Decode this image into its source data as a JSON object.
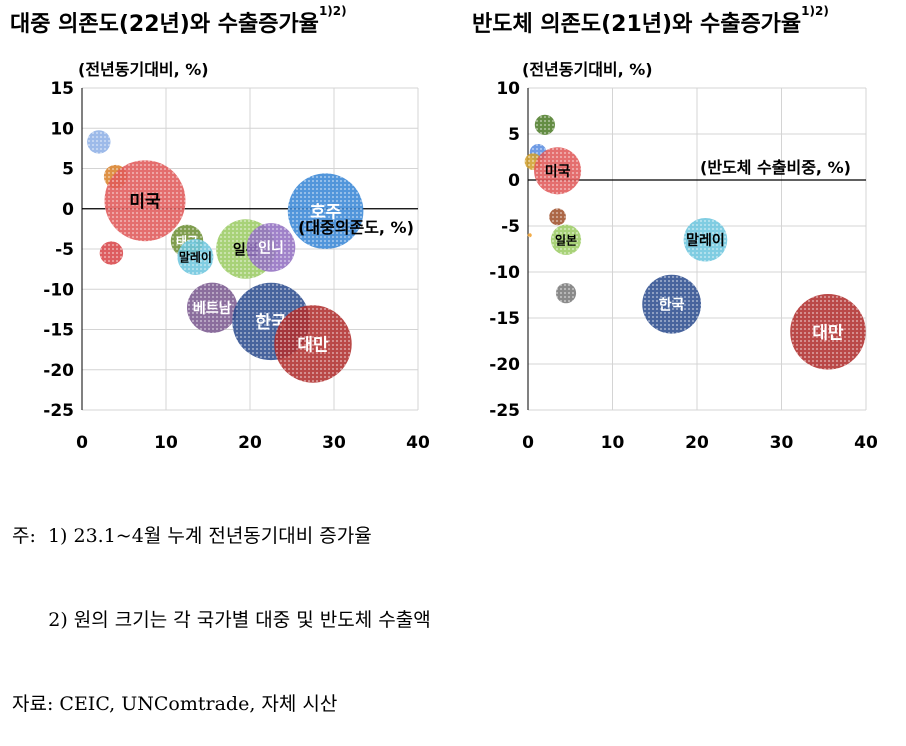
{
  "titles": {
    "left": {
      "text": "대중 의존도(22년)와 수출증가율",
      "sup": "1)2)"
    },
    "right": {
      "text": "반도체 의존도(21년)와 수출증가율",
      "sup": "1)2)"
    }
  },
  "notes": [
    "주:  1) 23.1~4월 누계 전년동기대비 증가율",
    "      2) 원의 크기는 각 국가별 대중 및 반도체 수출액",
    "자료: CEIC, UNComtrade, 자체 시산"
  ],
  "chart_data": [
    {
      "type": "bubble",
      "ylabel": "(전년동기대비, %)",
      "xlabel": "(대중의존도, %)",
      "xlim": [
        0,
        40
      ],
      "ylim": [
        -25,
        15
      ],
      "xticks": [
        0,
        10,
        20,
        30,
        40
      ],
      "yticks": [
        15,
        10,
        5,
        0,
        -5,
        -10,
        -15,
        -20,
        -25
      ],
      "grid": true,
      "points": [
        {
          "label": "",
          "x": 2,
          "y": 8.3,
          "size": 1.3,
          "color": "#8fb1e6"
        },
        {
          "label": "",
          "x": 4,
          "y": 4,
          "size": 1.3,
          "color": "#d9822b"
        },
        {
          "label": "",
          "x": 3.5,
          "y": -5.5,
          "size": 1.3,
          "color": "#d8474a"
        },
        {
          "label": "미국",
          "x": 7.5,
          "y": 1,
          "size": 4.5,
          "color": "#e05a5a"
        },
        {
          "label": "태국",
          "x": 12.5,
          "y": -4,
          "size": 1.8,
          "color": "#6d8f35"
        },
        {
          "label": "말레이",
          "x": 13.5,
          "y": -6,
          "size": 2.0,
          "color": "#6ec6de"
        },
        {
          "label": "베트남",
          "x": 15.5,
          "y": -12.3,
          "size": 2.8,
          "color": "#7b5a8f"
        },
        {
          "label": "일본",
          "x": 19.5,
          "y": -5,
          "size": 3.3,
          "color": "#9ccc65"
        },
        {
          "label": "인니",
          "x": 22.5,
          "y": -4.8,
          "size": 2.7,
          "color": "#9371c2"
        },
        {
          "label": "한국",
          "x": 22.5,
          "y": -14,
          "size": 4.3,
          "color": "#2f4f8f"
        },
        {
          "label": "대만",
          "x": 27.5,
          "y": -16.8,
          "size": 4.3,
          "color": "#b0302f"
        },
        {
          "label": "호주",
          "x": 29,
          "y": -0.3,
          "size": 4.2,
          "color": "#3a87d6"
        }
      ]
    },
    {
      "type": "bubble",
      "ylabel": "(전년동기대비, %)",
      "xlabel": "(반도체 수출비중, %)",
      "xlim": [
        0,
        40
      ],
      "ylim": [
        -25,
        10
      ],
      "xticks": [
        0,
        10,
        20,
        30,
        40
      ],
      "yticks": [
        10,
        5,
        0,
        -5,
        -10,
        -15,
        -20,
        -25
      ],
      "grid": true,
      "points": [
        {
          "label": "",
          "x": 2,
          "y": 6,
          "size": 1.2,
          "color": "#4e7d2a"
        },
        {
          "label": "",
          "x": 1.2,
          "y": 3,
          "size": 1.0,
          "color": "#5b8de0"
        },
        {
          "label": "",
          "x": 0.6,
          "y": 2,
          "size": 1.0,
          "color": "#d0a030"
        },
        {
          "label": "미국",
          "x": 3.5,
          "y": 1,
          "size": 2.8,
          "color": "#e05a5a"
        },
        {
          "label": "",
          "x": 3.5,
          "y": -4,
          "size": 1.0,
          "color": "#a0522d"
        },
        {
          "label": "",
          "x": 0.2,
          "y": -6,
          "size": 0.25,
          "color": "#f0a030"
        },
        {
          "label": "일본",
          "x": 4.5,
          "y": -6.5,
          "size": 1.8,
          "color": "#9ccc65"
        },
        {
          "label": "",
          "x": 4.5,
          "y": -12.3,
          "size": 1.2,
          "color": "#7a7a7a"
        },
        {
          "label": "말레이",
          "x": 21,
          "y": -6.5,
          "size": 2.6,
          "color": "#6ec6de"
        },
        {
          "label": "한국",
          "x": 17,
          "y": -13.5,
          "size": 3.5,
          "color": "#2f4f8f"
        },
        {
          "label": "대만",
          "x": 35.5,
          "y": -16.5,
          "size": 4.5,
          "color": "#b0302f"
        }
      ]
    }
  ]
}
